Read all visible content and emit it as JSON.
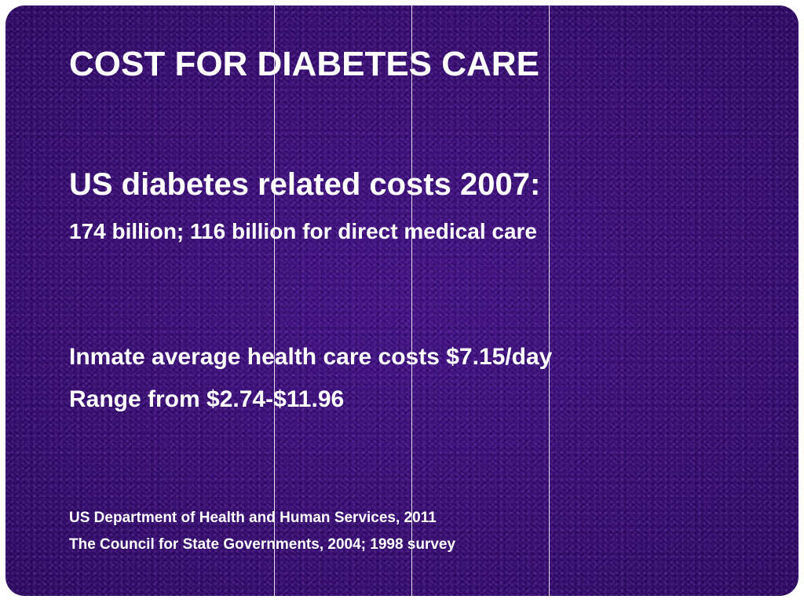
{
  "slide": {
    "background_color": "#3a0e7a",
    "text_color": "#ffffff",
    "title": "COST FOR DIABETES CARE",
    "us_costs_heading": "US diabetes related costs 2007:",
    "us_costs_detail": "174 billion;  116 billion for direct medical care",
    "inmate_costs": "Inmate average health care costs $7.15/day",
    "inmate_range": "Range from $2.74-$11.96",
    "sources": [
      "US Department of Health and Human Services, 2011",
      "The Council for State Governments, 2004; 1998 survey"
    ]
  }
}
